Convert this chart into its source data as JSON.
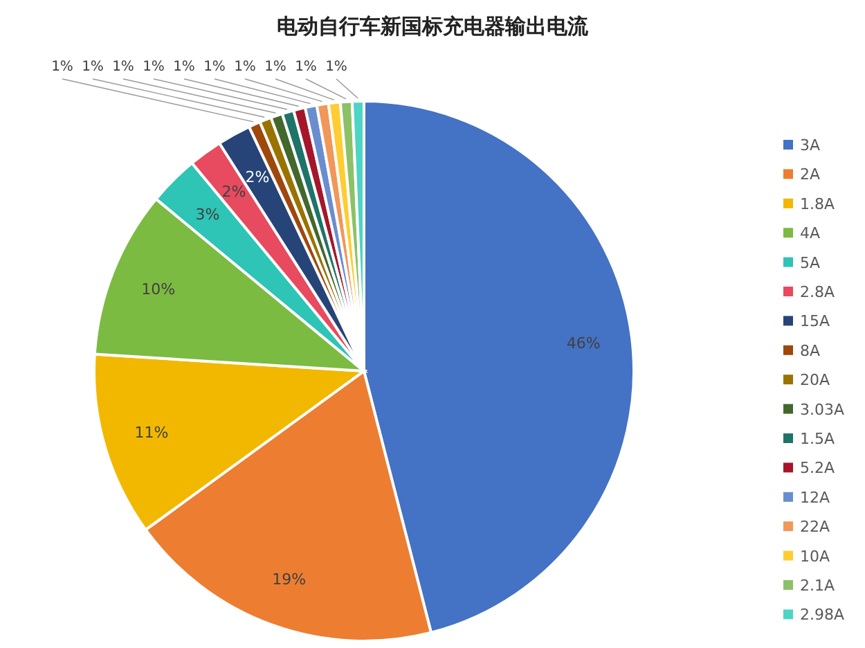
{
  "chart_data": {
    "type": "pie",
    "title": "电动自行车新国标充电器输出电流",
    "categories": [
      "3A",
      "2A",
      "1.8A",
      "4A",
      "5A",
      "2.8A",
      "15A",
      "8A",
      "20A",
      "3.03A",
      "1.5A",
      "5.2A",
      "12A",
      "22A",
      "10A",
      "2.1A",
      "2.98A"
    ],
    "values": [
      46,
      19,
      11,
      10,
      3,
      2,
      2,
      0.7,
      0.7,
      0.7,
      0.7,
      0.7,
      0.7,
      0.7,
      0.7,
      0.7,
      0.7
    ],
    "value_labels": [
      "46%",
      "19%",
      "11%",
      "10%",
      "3%",
      "2%",
      "2%",
      "1%",
      "1%",
      "1%",
      "1%",
      "1%",
      "1%",
      "1%",
      "1%",
      "1%",
      "1%"
    ],
    "colors": [
      "#4472c4",
      "#ed7d31",
      "#f2b800",
      "#7cbb42",
      "#2ec4b6",
      "#e84a5f",
      "#264478",
      "#9e480e",
      "#997300",
      "#43682b",
      "#1e7468",
      "#a5162a",
      "#698ed0",
      "#f1975a",
      "#ffcd33",
      "#8cc168",
      "#4dd4c4"
    ],
    "legend": "right"
  }
}
